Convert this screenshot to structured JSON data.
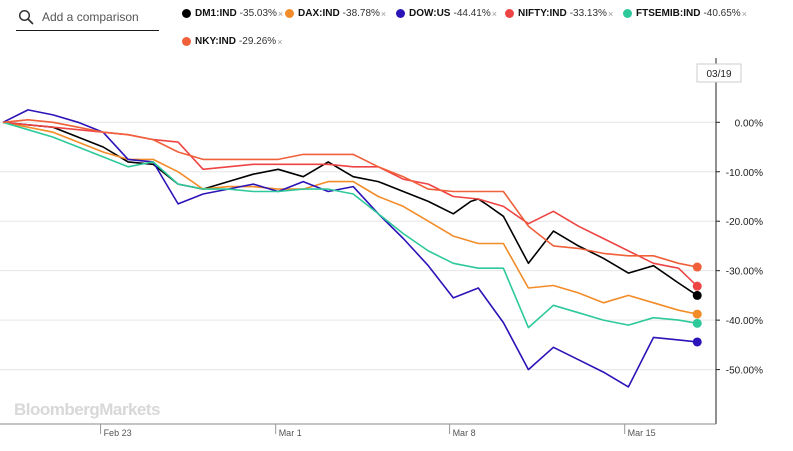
{
  "search": {
    "placeholder": "Add a comparison"
  },
  "legend": [
    {
      "name": "DM1:IND",
      "pct": "-35.03%",
      "color": "#000000",
      "close": "×"
    },
    {
      "name": "DAX:IND",
      "pct": "-38.78%",
      "color": "#f28c28",
      "close": "×"
    },
    {
      "name": "DOW:US",
      "pct": "-44.41%",
      "color": "#2b14b8",
      "close": "×"
    },
    {
      "name": "NIFTY:IND",
      "pct": "-33.13%",
      "color": "#ee4444",
      "close": "×"
    },
    {
      "name": "FTSEMIB:IND",
      "pct": "-40.65%",
      "color": "#2ec99a",
      "close": "×"
    },
    {
      "name": "NKY:IND",
      "pct": "-29.26%",
      "color": "#f0603a",
      "close": "×"
    }
  ],
  "brand": "BloombergMarkets",
  "chart_data": {
    "type": "line",
    "date_badge": "03/19",
    "x_ticks": [
      {
        "label": "Feb 23",
        "x": 3.9
      },
      {
        "label": "Mar 1",
        "x": 10.9
      },
      {
        "label": "Mar 8",
        "x": 17.85
      },
      {
        "label": "Mar 15",
        "x": 24.85
      }
    ],
    "y_ticks": [
      {
        "label": "0.00%",
        "value": 0
      },
      {
        "label": "-10.00%",
        "value": -10
      },
      {
        "label": "-20.00%",
        "value": -20
      },
      {
        "label": "-30.00%",
        "value": -30
      },
      {
        "label": "-40.00%",
        "value": -40
      },
      {
        "label": "-50.00%",
        "value": -50
      }
    ],
    "xlim": [
      0,
      28.5
    ],
    "ylim": [
      -61,
      13
    ],
    "grid": true,
    "series": [
      {
        "name": "DM1:IND",
        "color": "#000000",
        "points": [
          [
            0,
            0
          ],
          [
            1,
            -0.5
          ],
          [
            2,
            -1
          ],
          [
            3,
            -3
          ],
          [
            4,
            -5
          ],
          [
            5,
            -8
          ],
          [
            6,
            -8.5
          ],
          [
            7,
            -12.5
          ],
          [
            8,
            -13.5
          ],
          [
            9,
            -12
          ],
          [
            10,
            -10.5
          ],
          [
            11,
            -9.5
          ],
          [
            12,
            -11
          ],
          [
            13,
            -8
          ],
          [
            14,
            -11
          ],
          [
            15,
            -12
          ],
          [
            16,
            -14
          ],
          [
            17,
            -16
          ],
          [
            18,
            -18.5
          ],
          [
            18.7,
            -16
          ],
          [
            19,
            -15.5
          ],
          [
            19.3,
            -16.5
          ],
          [
            20,
            -19
          ],
          [
            21,
            -28.5
          ],
          [
            22,
            -22
          ],
          [
            23,
            -25
          ],
          [
            24,
            -27.5
          ],
          [
            25,
            -30.5
          ],
          [
            26,
            -29
          ],
          [
            27,
            -32.5
          ],
          [
            27.75,
            -35
          ]
        ]
      },
      {
        "name": "DAX:IND",
        "color": "#f28c28",
        "points": [
          [
            0,
            0
          ],
          [
            1,
            -1
          ],
          [
            2,
            -2
          ],
          [
            3,
            -4
          ],
          [
            4,
            -6
          ],
          [
            5,
            -7.5
          ],
          [
            6,
            -7.5
          ],
          [
            7,
            -10
          ],
          [
            8,
            -13.5
          ],
          [
            9,
            -13
          ],
          [
            10,
            -13
          ],
          [
            11,
            -13.5
          ],
          [
            12,
            -13.5
          ],
          [
            13,
            -12
          ],
          [
            14,
            -12
          ],
          [
            15,
            -15
          ],
          [
            16,
            -17
          ],
          [
            17,
            -20
          ],
          [
            18,
            -23
          ],
          [
            19,
            -24.5
          ],
          [
            20,
            -24.5
          ],
          [
            21,
            -33.5
          ],
          [
            22,
            -33
          ],
          [
            23,
            -34.5
          ],
          [
            24,
            -36.5
          ],
          [
            25,
            -35
          ],
          [
            26,
            -36.5
          ],
          [
            27,
            -38
          ],
          [
            27.75,
            -38.78
          ]
        ]
      },
      {
        "name": "DOW:US",
        "color": "#2b14b8",
        "points": [
          [
            0,
            0
          ],
          [
            1,
            2.5
          ],
          [
            2,
            1.5
          ],
          [
            3,
            0
          ],
          [
            4,
            -2
          ],
          [
            5,
            -7.5
          ],
          [
            6,
            -8
          ],
          [
            7,
            -16.5
          ],
          [
            8,
            -14.5
          ],
          [
            9,
            -13.5
          ],
          [
            10,
            -12.5
          ],
          [
            11,
            -14
          ],
          [
            12,
            -12
          ],
          [
            13,
            -14
          ],
          [
            14,
            -13
          ],
          [
            15,
            -18.5
          ],
          [
            16,
            -23.5
          ],
          [
            17,
            -29
          ],
          [
            18,
            -35.5
          ],
          [
            19,
            -33.5
          ],
          [
            20,
            -40.5
          ],
          [
            21,
            -50
          ],
          [
            22,
            -45.5
          ],
          [
            23,
            -48
          ],
          [
            24,
            -50.5
          ],
          [
            25,
            -53.5
          ],
          [
            26,
            -43.5
          ],
          [
            27,
            -44
          ],
          [
            27.75,
            -44.41
          ]
        ]
      },
      {
        "name": "NIFTY:IND",
        "color": "#ee4444",
        "points": [
          [
            0,
            0
          ],
          [
            1,
            -0.5
          ],
          [
            2,
            -1
          ],
          [
            3,
            -1.5
          ],
          [
            4,
            -2
          ],
          [
            5,
            -2.5
          ],
          [
            6,
            -3.5
          ],
          [
            7,
            -4
          ],
          [
            8,
            -9.5
          ],
          [
            9,
            -9
          ],
          [
            10,
            -8.5
          ],
          [
            11,
            -8.5
          ],
          [
            12,
            -8.5
          ],
          [
            13,
            -8.5
          ],
          [
            14,
            -9
          ],
          [
            15,
            -9
          ],
          [
            16,
            -11.5
          ],
          [
            17,
            -12.5
          ],
          [
            18,
            -15
          ],
          [
            19,
            -15.5
          ],
          [
            20,
            -17
          ],
          [
            21,
            -20.5
          ],
          [
            22,
            -18
          ],
          [
            23,
            -21
          ],
          [
            24,
            -23.5
          ],
          [
            25,
            -26
          ],
          [
            26,
            -28.5
          ],
          [
            27,
            -29.5
          ],
          [
            27.75,
            -33.13
          ]
        ]
      },
      {
        "name": "FTSEMIB:IND",
        "color": "#2ec99a",
        "points": [
          [
            0,
            0
          ],
          [
            1,
            -1.5
          ],
          [
            2,
            -3
          ],
          [
            3,
            -5
          ],
          [
            4,
            -7
          ],
          [
            5,
            -9
          ],
          [
            6,
            -8
          ],
          [
            7,
            -12.5
          ],
          [
            8,
            -13.5
          ],
          [
            9,
            -13.5
          ],
          [
            10,
            -14
          ],
          [
            11,
            -14
          ],
          [
            12,
            -13.5
          ],
          [
            13,
            -13.5
          ],
          [
            14,
            -14.5
          ],
          [
            15,
            -18.5
          ],
          [
            16,
            -22.5
          ],
          [
            17,
            -26
          ],
          [
            18,
            -28.5
          ],
          [
            19,
            -29.5
          ],
          [
            20,
            -29.5
          ],
          [
            21,
            -41.5
          ],
          [
            22,
            -37
          ],
          [
            23,
            -38.5
          ],
          [
            24,
            -40
          ],
          [
            25,
            -41
          ],
          [
            26,
            -39.5
          ],
          [
            27,
            -40
          ],
          [
            27.75,
            -40.65
          ]
        ]
      },
      {
        "name": "NKY:IND",
        "color": "#f0603a",
        "points": [
          [
            0,
            0
          ],
          [
            1,
            0.5
          ],
          [
            2,
            0
          ],
          [
            3,
            -1
          ],
          [
            4,
            -2
          ],
          [
            5,
            -2.5
          ],
          [
            6,
            -3.5
          ],
          [
            7,
            -6
          ],
          [
            8,
            -7.5
          ],
          [
            9,
            -7.5
          ],
          [
            10,
            -7.5
          ],
          [
            11,
            -7.5
          ],
          [
            12,
            -6.5
          ],
          [
            13,
            -6.5
          ],
          [
            14,
            -6.5
          ],
          [
            15,
            -9
          ],
          [
            16,
            -11
          ],
          [
            17,
            -13.5
          ],
          [
            18,
            -14
          ],
          [
            19,
            -14
          ],
          [
            20,
            -14
          ],
          [
            21,
            -21
          ],
          [
            22,
            -25
          ],
          [
            23,
            -25.5
          ],
          [
            24,
            -26.5
          ],
          [
            25,
            -27
          ],
          [
            26,
            -27
          ],
          [
            27,
            -28.5
          ],
          [
            27.75,
            -29.26
          ]
        ]
      }
    ]
  }
}
